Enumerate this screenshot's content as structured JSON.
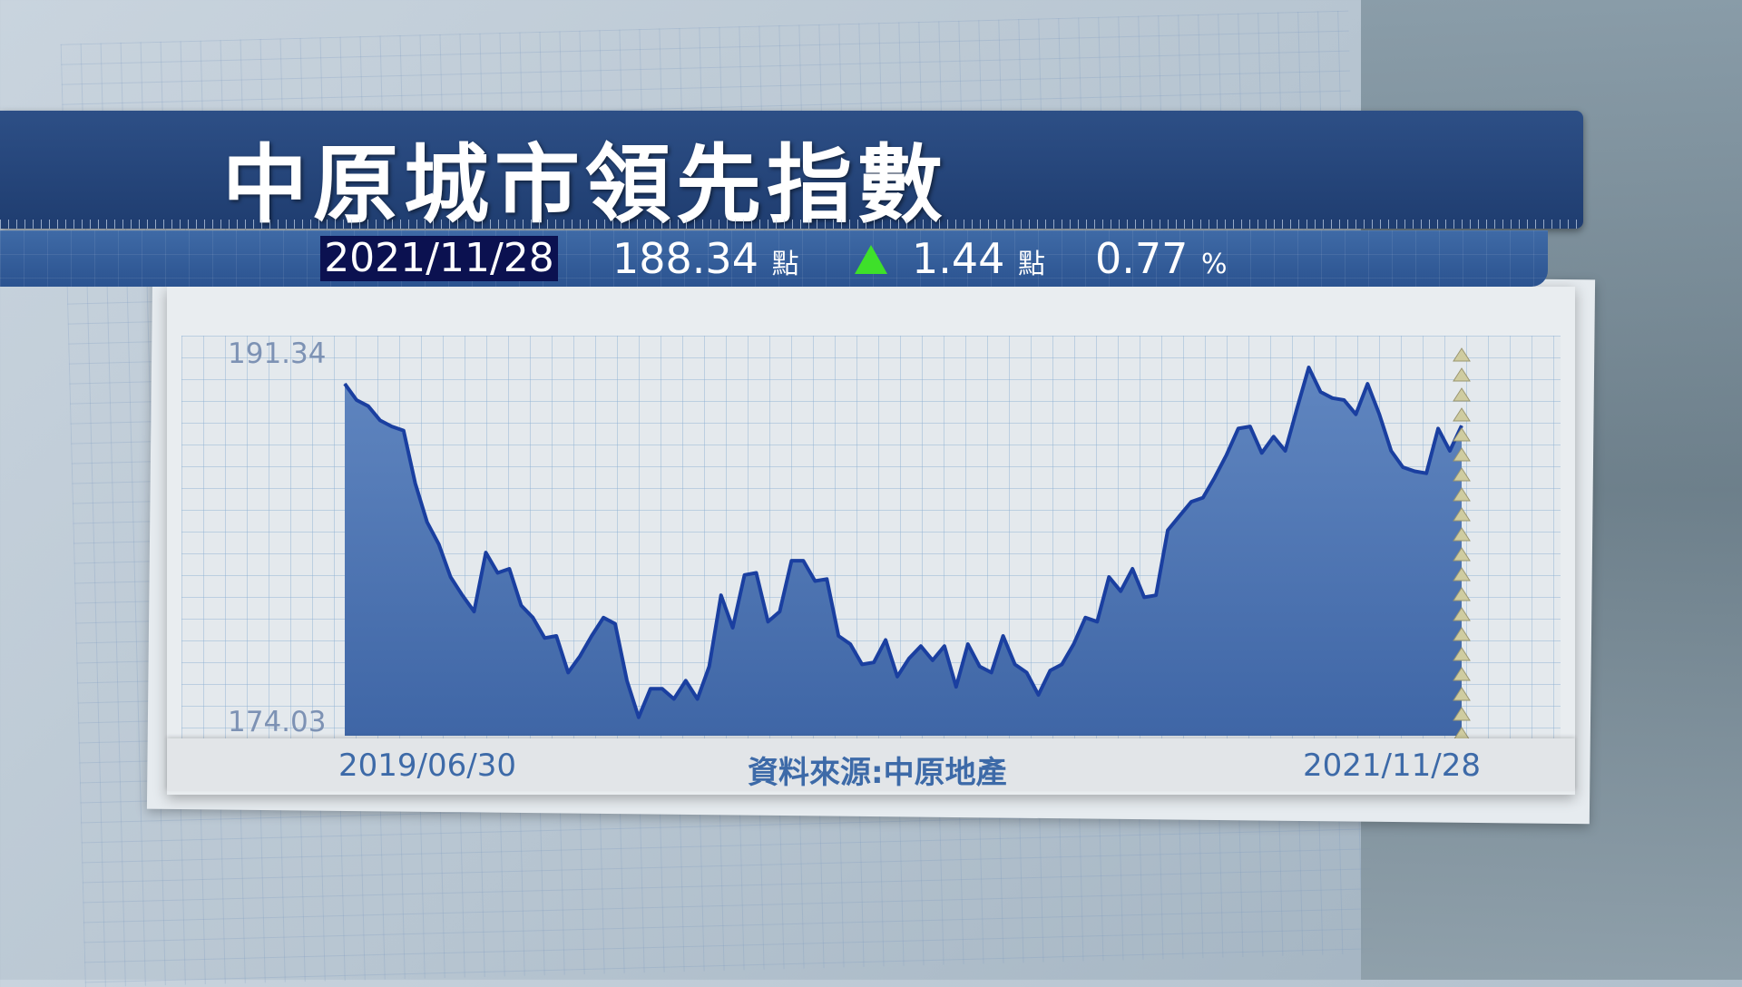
{
  "title": "中原城市領先指數",
  "summary": {
    "date": "2021/11/28",
    "index_value": "188.34",
    "unit_points": "點",
    "change": "1.44",
    "change_direction": "up",
    "change_unit": "點",
    "percent": "0.77",
    "percent_unit": "%"
  },
  "colors": {
    "banner": "#2d4f86",
    "area": "#4a72b0",
    "line": "#1a3fa0",
    "up": "#3ee02a",
    "date_box": "#0b1150"
  },
  "chart_data": {
    "type": "area",
    "x_start": "2019/06/30",
    "x_end": "2021/11/28",
    "ylim": [
      174.03,
      191.34
    ],
    "y_tick_labels": [
      "191.34",
      "174.03"
    ],
    "x_tick_labels": [
      "2019/06/30",
      "2021/11/28"
    ],
    "source": "資料來源:中原地產",
    "grid": true,
    "values": [
      190.4,
      189.6,
      189.3,
      188.6,
      188.3,
      188.1,
      185.5,
      183.6,
      182.5,
      180.9,
      180.0,
      179.2,
      182.1,
      181.1,
      181.3,
      179.5,
      178.9,
      177.9,
      178.0,
      176.2,
      177.0,
      178.0,
      178.9,
      178.6,
      175.8,
      174.0,
      175.4,
      175.4,
      174.9,
      175.8,
      174.9,
      176.5,
      180.0,
      178.4,
      181.0,
      181.1,
      178.7,
      179.2,
      181.7,
      181.7,
      180.7,
      180.8,
      178.0,
      177.6,
      176.6,
      176.7,
      177.8,
      176.0,
      176.9,
      177.5,
      176.8,
      177.5,
      175.5,
      177.6,
      176.5,
      176.2,
      178.0,
      176.6,
      176.2,
      175.1,
      176.3,
      176.6,
      177.6,
      178.9,
      178.7,
      180.9,
      180.2,
      181.3,
      179.9,
      180.0,
      183.2,
      183.9,
      184.6,
      184.8,
      185.8,
      186.9,
      188.2,
      188.3,
      187.0,
      187.8,
      187.1,
      189.2,
      191.2,
      190.0,
      189.7,
      189.6,
      188.9,
      190.4,
      188.9,
      187.1,
      186.3,
      186.1,
      186.0,
      188.2,
      187.1,
      188.34
    ]
  }
}
